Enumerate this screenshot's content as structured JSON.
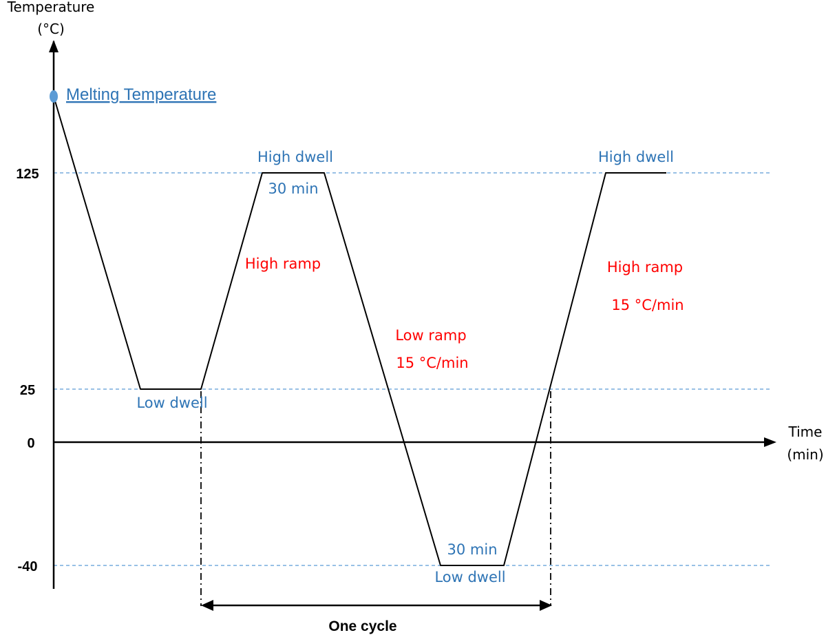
{
  "y_axis": {
    "title_line1": "Temperature",
    "title_line2": "(°C)"
  },
  "x_axis": {
    "title_line1": "Time",
    "title_line2": "(min)"
  },
  "ticks": [
    "125",
    "25",
    "0",
    "-40"
  ],
  "melting_label": "Melting Temperature",
  "labels": {
    "high_dwell_1": "High dwell",
    "high_dwell_1_time": "30 min",
    "high_ramp_1": "High ramp",
    "low_dwell_1": "Low dwell",
    "low_ramp": "Low ramp",
    "low_ramp_rate": "15 °C/min",
    "low_dwell_2_time": "30 min",
    "low_dwell_2": "Low dwell",
    "high_dwell_2": "High dwell",
    "high_ramp_2": "High ramp",
    "high_ramp_2_rate": "15 °C/min"
  },
  "cycle_label": "One cycle",
  "colors": {
    "blue": "#2e74b5",
    "red": "#ff0000",
    "guide": "#5b9bd5",
    "axis": "#000000"
  }
}
